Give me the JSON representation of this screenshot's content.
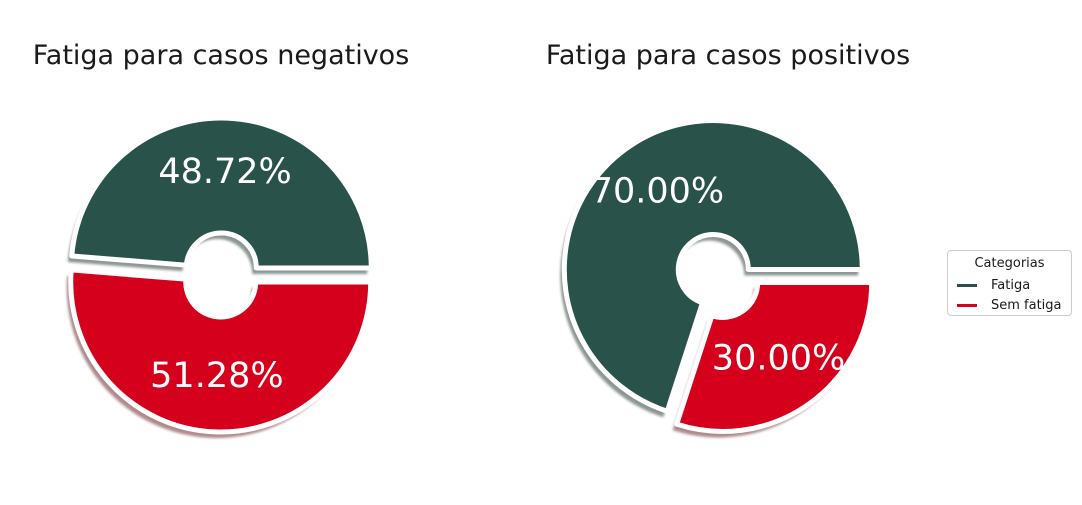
{
  "chart_data": [
    {
      "type": "pie",
      "title": "Fatiga para casos negativos",
      "categories": [
        "Fatiga",
        "Sem fatiga"
      ],
      "values": [
        48.72,
        51.28
      ],
      "labels": [
        "48.72%",
        "51.28%"
      ],
      "colors": [
        "#29524a",
        "#d4001c"
      ]
    },
    {
      "type": "pie",
      "title": "Fatiga para casos positivos",
      "categories": [
        "Fatiga",
        "Sem fatiga"
      ],
      "values": [
        70.0,
        30.0
      ],
      "labels": [
        "70.00%",
        "30.00%"
      ],
      "colors": [
        "#29524a",
        "#d4001c"
      ]
    }
  ],
  "legend": {
    "title": "Categorias",
    "placement": "right",
    "items": [
      {
        "label": "Fatiga",
        "color": "#29524a"
      },
      {
        "label": "Sem fatiga",
        "color": "#d4001c"
      }
    ]
  }
}
